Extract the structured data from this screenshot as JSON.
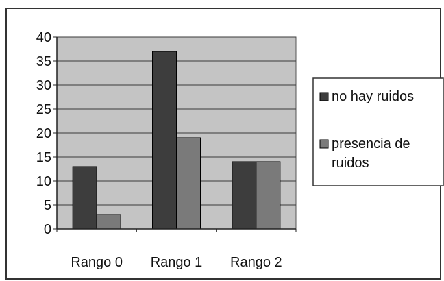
{
  "chart_data": {
    "type": "bar",
    "categories": [
      "Rango 0",
      "Rango 1",
      "Rango 2"
    ],
    "series": [
      {
        "name": "no hay ruidos",
        "values": [
          13,
          37,
          14
        ],
        "color": "#3d3d3d"
      },
      {
        "name": "presencia de ruidos",
        "values": [
          3,
          19,
          14
        ],
        "color": "#7a7a7a"
      }
    ],
    "ylim": [
      0,
      40
    ],
    "yticks": [
      0,
      5,
      10,
      15,
      20,
      25,
      30,
      35,
      40
    ],
    "grid": true,
    "plot_background": "#c4c4c4",
    "legend": {
      "placement": "right",
      "entries": [
        {
          "lines": [
            "no hay ruidos"
          ]
        },
        {
          "lines": [
            "presencia de",
            "ruidos"
          ]
        }
      ]
    }
  }
}
